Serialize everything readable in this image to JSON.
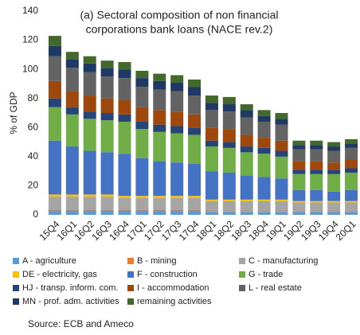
{
  "chart_data": {
    "type": "stacked_bar",
    "title_lines": [
      "(a) Sectoral composition of non financial",
      "corporations bank loans (NACE rev.2)"
    ],
    "y_label": "% of GDP",
    "source": "Source: ECB and Ameco",
    "categories": [
      "15Q4",
      "16Q1",
      "16Q2",
      "16Q3",
      "16Q4",
      "17Q1",
      "17Q2",
      "17Q3",
      "17Q4",
      "18Q1",
      "18Q2",
      "18Q3",
      "18Q4",
      "19Q1",
      "19Q2",
      "19Q3",
      "19Q4",
      "20Q1"
    ],
    "ylim": [
      0,
      140
    ],
    "yticks": [
      0,
      20,
      40,
      60,
      80,
      100,
      120,
      140
    ],
    "series": [
      {
        "name": "A - agriculture",
        "color": "#5b9bd5",
        "values": [
          3,
          3,
          3,
          3,
          3,
          3,
          3,
          3,
          3,
          2,
          2,
          2,
          2,
          2,
          2,
          2,
          2,
          2
        ]
      },
      {
        "name": "B - mining",
        "color": "#ed7d31",
        "values": [
          0.5,
          0.5,
          0.5,
          0.5,
          0.5,
          0.5,
          0.5,
          0.5,
          0.5,
          0.5,
          0.5,
          0.5,
          0.5,
          0.5,
          0.5,
          0.5,
          0.5,
          0.5
        ]
      },
      {
        "name": "C - manufacturing",
        "color": "#a5a5a5",
        "values": [
          9,
          9,
          9,
          9,
          8,
          8,
          8,
          8,
          8,
          7,
          7,
          7,
          7,
          7,
          6,
          6,
          6,
          6
        ]
      },
      {
        "name": "DE - electricity, gas",
        "color": "#ffc000",
        "values": [
          1.5,
          1.5,
          1.5,
          1.5,
          1.5,
          1.5,
          1.5,
          1.5,
          1.5,
          1,
          1,
          1,
          1,
          1,
          1,
          1,
          1,
          1
        ]
      },
      {
        "name": "F - construction",
        "color": "#4472c4",
        "values": [
          37,
          33,
          30,
          29,
          29,
          26,
          24,
          23,
          22,
          19.5,
          18.5,
          16.5,
          15.5,
          14.5,
          7.5,
          7.5,
          6.5,
          7.5
        ]
      },
      {
        "name": "G - trade",
        "color": "#70ad47",
        "values": [
          23,
          22,
          22,
          22,
          22,
          20,
          20,
          20,
          20,
          17,
          17,
          16,
          16,
          15,
          11,
          11,
          12,
          12
        ]
      },
      {
        "name": "HJ - transp. inform. com.",
        "color": "#264478",
        "values": [
          6,
          5,
          5,
          5,
          5,
          5,
          5,
          5,
          5,
          4,
          4,
          4,
          4,
          4,
          3,
          3,
          3,
          3
        ]
      },
      {
        "name": "I - accommodation",
        "color": "#9e480e",
        "values": [
          12,
          11,
          11,
          10,
          10,
          10,
          10,
          10,
          9,
          9,
          9,
          8,
          7,
          7,
          6,
          6,
          5,
          6
        ]
      },
      {
        "name": "L - real estate",
        "color": "#636363",
        "values": [
          17,
          16,
          16,
          15,
          15,
          14,
          14,
          14,
          13,
          12,
          12,
          12,
          11,
          11,
          8,
          8,
          8,
          8
        ]
      },
      {
        "name": "MN - prof. adm. activities",
        "color": "#1f3864",
        "values": [
          7,
          6,
          6,
          6,
          6,
          6,
          6,
          6,
          6,
          5,
          5,
          5,
          4,
          4,
          3,
          3,
          3,
          3
        ]
      },
      {
        "name": "remaining activities",
        "color": "#43682b",
        "values": [
          7,
          5,
          5,
          5,
          5,
          5,
          5,
          5,
          5,
          5,
          5,
          4,
          4,
          4,
          3,
          3,
          3,
          3
        ]
      }
    ]
  }
}
